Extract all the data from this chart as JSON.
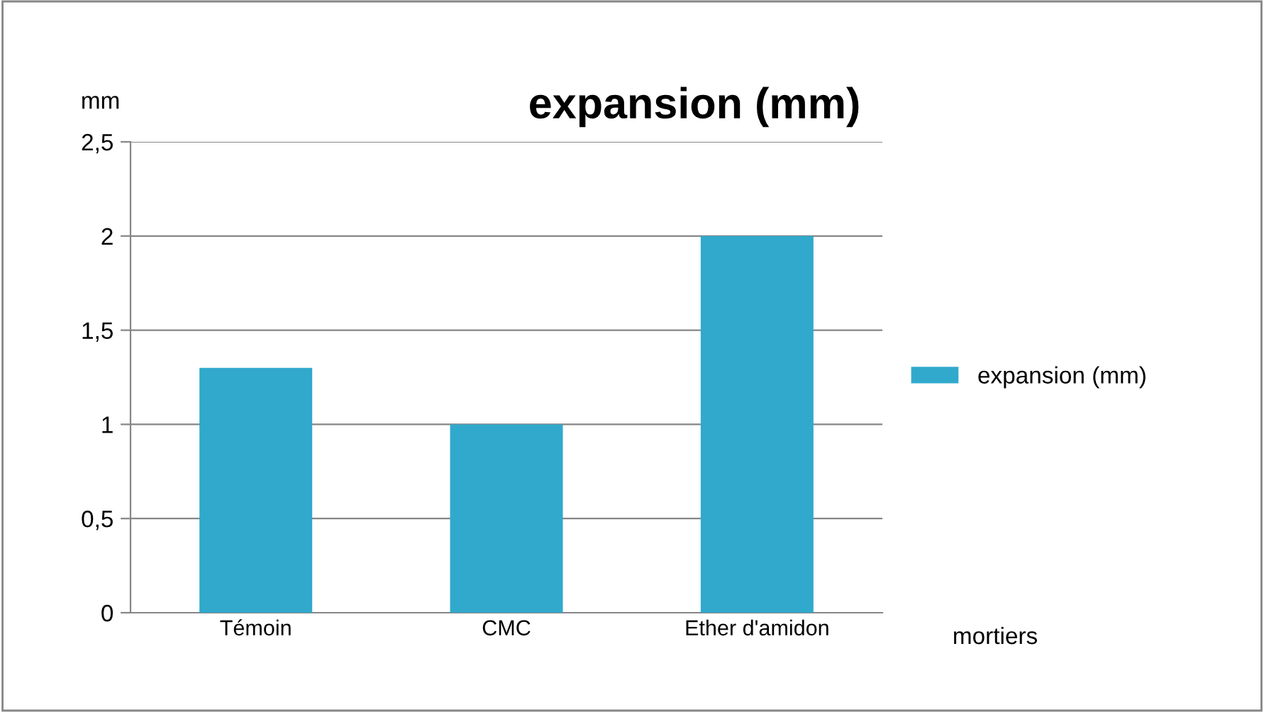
{
  "chart_data": {
    "type": "bar",
    "title": "expansion (mm)",
    "xlabel": "mortiers",
    "ylabel": "mm",
    "categories": [
      "Témoin",
      "CMC",
      "Ether d'amidon"
    ],
    "series": [
      {
        "name": "expansion (mm)",
        "color": "#31a9cc",
        "values": [
          1.3,
          1.0,
          2.0
        ]
      }
    ],
    "ylim": [
      0,
      2.5
    ],
    "yticks": [
      0,
      {
        "value": 0.5,
        "label": "0,5"
      },
      1,
      {
        "value": 1.5,
        "label": "1,5"
      },
      2,
      {
        "value": 2.5,
        "label": "2,5"
      }
    ],
    "grid": "y",
    "legend": "right"
  }
}
